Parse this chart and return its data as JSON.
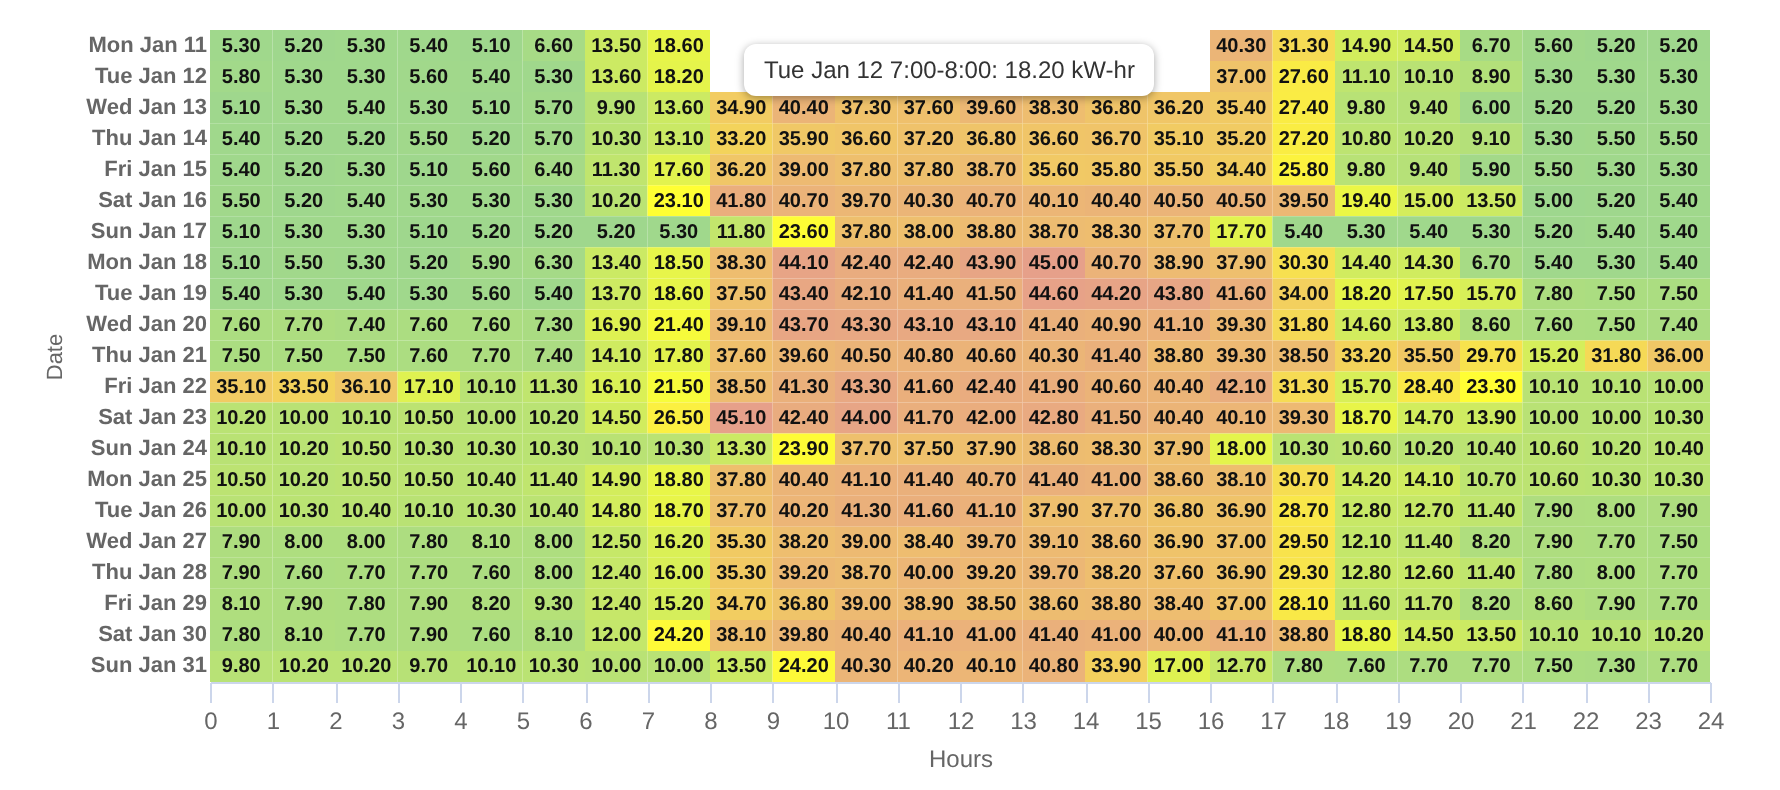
{
  "chart_data": {
    "type": "heatmap",
    "xlabel": "Hours",
    "ylabel": "Date",
    "x": [
      0,
      1,
      2,
      3,
      4,
      5,
      6,
      7,
      8,
      9,
      10,
      11,
      12,
      13,
      14,
      15,
      16,
      17,
      18,
      19,
      20,
      21,
      22,
      23
    ],
    "xlim": [
      0,
      24
    ],
    "xticks": [
      0,
      1,
      2,
      3,
      4,
      5,
      6,
      7,
      8,
      9,
      10,
      11,
      12,
      13,
      14,
      15,
      16,
      17,
      18,
      19,
      20,
      21,
      22,
      23,
      24
    ],
    "y_categories": [
      "Mon Jan 11",
      "Tue Jan 12",
      "Wed Jan 13",
      "Thu Jan 14",
      "Fri Jan 15",
      "Sat Jan 16",
      "Sun Jan 17",
      "Mon Jan 18",
      "Tue Jan 19",
      "Wed Jan 20",
      "Thu Jan 21",
      "Fri Jan 22",
      "Sat Jan 23",
      "Sun Jan 24",
      "Mon Jan 25",
      "Tue Jan 26",
      "Wed Jan 27",
      "Thu Jan 28",
      "Fri Jan 29",
      "Sat Jan 30",
      "Sun Jan 31"
    ],
    "cells": [
      [
        5.3,
        5.2,
        5.3,
        5.4,
        5.1,
        6.6,
        13.5,
        18.6,
        null,
        null,
        null,
        null,
        null,
        null,
        null,
        null,
        40.3,
        31.3,
        14.9,
        14.5,
        6.7,
        5.6,
        5.2,
        5.2
      ],
      [
        5.8,
        5.3,
        5.3,
        5.6,
        5.4,
        5.3,
        13.6,
        18.2,
        null,
        null,
        null,
        null,
        null,
        null,
        null,
        null,
        37.0,
        27.6,
        11.1,
        10.1,
        8.9,
        5.3,
        5.3,
        5.3
      ],
      [
        5.1,
        5.3,
        5.4,
        5.3,
        5.1,
        5.7,
        9.9,
        13.6,
        34.9,
        40.4,
        37.3,
        37.6,
        39.6,
        38.3,
        36.8,
        36.2,
        35.4,
        27.4,
        9.8,
        9.4,
        6.0,
        5.2,
        5.2,
        5.3
      ],
      [
        5.4,
        5.2,
        5.2,
        5.5,
        5.2,
        5.7,
        10.3,
        13.1,
        33.2,
        35.9,
        36.6,
        37.2,
        36.8,
        36.6,
        36.7,
        35.1,
        35.2,
        27.2,
        10.8,
        10.2,
        9.1,
        5.3,
        5.5,
        5.5
      ],
      [
        5.4,
        5.2,
        5.3,
        5.1,
        5.6,
        6.4,
        11.3,
        17.6,
        36.2,
        39.0,
        37.8,
        37.8,
        38.7,
        35.6,
        35.8,
        35.5,
        34.4,
        25.8,
        9.8,
        9.4,
        5.9,
        5.5,
        5.3,
        5.3
      ],
      [
        5.5,
        5.2,
        5.4,
        5.3,
        5.3,
        5.3,
        10.2,
        23.1,
        41.8,
        40.7,
        39.7,
        40.3,
        40.7,
        40.1,
        40.4,
        40.5,
        40.5,
        39.5,
        19.4,
        15.0,
        13.5,
        5.0,
        5.2,
        5.4
      ],
      [
        5.1,
        5.3,
        5.3,
        5.1,
        5.2,
        5.2,
        5.2,
        5.3,
        11.8,
        23.6,
        37.8,
        38.0,
        38.8,
        38.7,
        38.3,
        37.7,
        17.7,
        5.4,
        5.3,
        5.4,
        5.3,
        5.2,
        5.4,
        5.4
      ],
      [
        5.1,
        5.5,
        5.3,
        5.2,
        5.9,
        6.3,
        13.4,
        18.5,
        38.3,
        44.1,
        42.4,
        42.4,
        43.9,
        45.0,
        40.7,
        38.9,
        37.9,
        30.3,
        14.4,
        14.3,
        6.7,
        5.4,
        5.3,
        5.4
      ],
      [
        5.4,
        5.3,
        5.4,
        5.3,
        5.6,
        5.4,
        13.7,
        18.6,
        37.5,
        43.4,
        42.1,
        41.4,
        41.5,
        44.6,
        44.2,
        43.8,
        41.6,
        34.0,
        18.2,
        17.5,
        15.7,
        7.8,
        7.5,
        7.5
      ],
      [
        7.6,
        7.7,
        7.4,
        7.6,
        7.6,
        7.3,
        16.9,
        21.4,
        39.1,
        43.7,
        43.3,
        43.1,
        43.1,
        41.4,
        40.9,
        41.1,
        39.3,
        31.8,
        14.6,
        13.8,
        8.6,
        7.6,
        7.5,
        7.4
      ],
      [
        7.5,
        7.5,
        7.5,
        7.6,
        7.7,
        7.4,
        14.1,
        17.8,
        37.6,
        39.6,
        40.5,
        40.8,
        40.6,
        40.3,
        41.4,
        38.8,
        39.3,
        38.5,
        33.2,
        35.5,
        29.7,
        15.2,
        31.8,
        36.0
      ],
      [
        35.1,
        33.5,
        36.1,
        17.1,
        10.1,
        11.3,
        16.1,
        21.5,
        38.5,
        41.3,
        43.3,
        41.6,
        42.4,
        41.9,
        40.6,
        40.4,
        42.1,
        31.3,
        15.7,
        28.4,
        23.3,
        10.1,
        10.1,
        10.0
      ],
      [
        10.2,
        10.0,
        10.1,
        10.5,
        10.0,
        10.2,
        14.5,
        26.5,
        45.1,
        42.4,
        44.0,
        41.7,
        42.0,
        42.8,
        41.5,
        40.4,
        40.1,
        39.3,
        18.7,
        14.7,
        13.9,
        10.0,
        10.0,
        10.3
      ],
      [
        10.1,
        10.2,
        10.5,
        10.3,
        10.3,
        10.3,
        10.1,
        10.3,
        13.3,
        23.9,
        37.7,
        37.5,
        37.9,
        38.6,
        38.3,
        37.9,
        18.0,
        10.3,
        10.6,
        10.2,
        10.4,
        10.6,
        10.2,
        10.4
      ],
      [
        10.5,
        10.2,
        10.5,
        10.5,
        10.4,
        11.4,
        14.9,
        18.8,
        37.8,
        40.4,
        41.1,
        41.4,
        40.7,
        41.4,
        41.0,
        38.6,
        38.1,
        30.7,
        14.2,
        14.1,
        10.7,
        10.6,
        10.3,
        10.3
      ],
      [
        10.0,
        10.3,
        10.4,
        10.1,
        10.3,
        10.4,
        14.8,
        18.7,
        37.7,
        40.2,
        41.3,
        41.6,
        41.1,
        37.9,
        37.7,
        36.8,
        36.9,
        28.7,
        12.8,
        12.7,
        11.4,
        7.9,
        8.0,
        7.9
      ],
      [
        7.9,
        8.0,
        8.0,
        7.8,
        8.1,
        8.0,
        12.5,
        16.2,
        35.3,
        38.2,
        39.0,
        38.4,
        39.7,
        39.1,
        38.6,
        36.9,
        37.0,
        29.5,
        12.1,
        11.4,
        8.2,
        7.9,
        7.7,
        7.5
      ],
      [
        7.9,
        7.6,
        7.7,
        7.7,
        7.6,
        8.0,
        12.4,
        16.0,
        35.3,
        39.2,
        38.7,
        40.0,
        39.2,
        39.7,
        38.2,
        37.6,
        36.9,
        29.3,
        12.8,
        12.6,
        11.4,
        7.8,
        8.0,
        7.7
      ],
      [
        8.1,
        7.9,
        7.8,
        7.9,
        8.2,
        9.3,
        12.4,
        15.2,
        34.7,
        36.8,
        39.0,
        38.9,
        38.5,
        38.6,
        38.8,
        38.4,
        37.0,
        28.1,
        11.6,
        11.7,
        8.2,
        8.6,
        7.9,
        7.7
      ],
      [
        7.8,
        8.1,
        7.7,
        7.9,
        7.6,
        8.1,
        12.0,
        24.2,
        38.1,
        39.8,
        40.4,
        41.1,
        41.0,
        41.4,
        41.0,
        40.0,
        41.1,
        38.8,
        18.8,
        14.5,
        13.5,
        10.1,
        10.1,
        10.2
      ],
      [
        9.8,
        10.2,
        10.2,
        9.7,
        10.1,
        10.3,
        10.0,
        10.0,
        13.5,
        24.2,
        40.3,
        40.2,
        40.1,
        40.8,
        33.9,
        17.0,
        12.7,
        7.8,
        7.6,
        7.7,
        7.7,
        7.5,
        7.3,
        7.7
      ]
    ],
    "cell_labels": [
      [
        "5.30",
        "5.20",
        "5.30",
        "5.40",
        "5.10",
        "6.60",
        "13.50",
        "18.60",
        null,
        null,
        null,
        null,
        null,
        null,
        null,
        null,
        "40.30",
        "31.30",
        "14.90",
        "14.50",
        "6.70",
        "5.60",
        "5.20",
        "5.20"
      ],
      [
        "5.80",
        "5.30",
        "5.30",
        "5.60",
        "5.40",
        "5.30",
        "13.60",
        "18.20",
        null,
        null,
        null,
        null,
        null,
        null,
        null,
        null,
        "37.00",
        "27.60",
        "11.10",
        "10.10",
        "8.90",
        "5.30",
        "5.30",
        "5.30"
      ],
      [
        "5.10",
        "5.30",
        "5.40",
        "5.30",
        "5.10",
        "5.70",
        "9.90",
        "13.60",
        "34.90",
        "40.40",
        "37.30",
        "37.60",
        "39.60",
        "38.30",
        "36.80",
        "36.20",
        "35.40",
        "27.40",
        "9.80",
        "9.40",
        "6.00",
        "5.20",
        "5.20",
        "5.30"
      ],
      [
        "5.40",
        "5.20",
        "5.20",
        "5.50",
        "5.20",
        "5.70",
        "10.30",
        "13.10",
        "33.20",
        "35.90",
        "36.60",
        "37.20",
        "36.80",
        "36.60",
        "36.70",
        "35.10",
        "35.20",
        "27.20",
        "10.80",
        "10.20",
        "9.10",
        "5.30",
        "5.50",
        "5.50"
      ],
      [
        "5.40",
        "5.20",
        "5.30",
        "5.10",
        "5.60",
        "6.40",
        "11.30",
        "17.60",
        "36.20",
        "39.00",
        "37.80",
        "37.80",
        "38.70",
        "35.60",
        "35.80",
        "35.50",
        "34.40",
        "25.80",
        "9.80",
        "9.40",
        "5.90",
        "5.50",
        "5.30",
        "5.30"
      ],
      [
        "5.50",
        "5.20",
        "5.40",
        "5.30",
        "5.30",
        "5.30",
        "10.20",
        "23.10",
        "41.80",
        "40.70",
        "39.70",
        "40.30",
        "40.70",
        "40.10",
        "40.40",
        "40.50",
        "40.50",
        "39.50",
        "19.40",
        "15.00",
        "13.50",
        "5.00",
        "5.20",
        "5.40"
      ],
      [
        "5.10",
        "5.30",
        "5.30",
        "5.10",
        "5.20",
        "5.20",
        "5.20",
        "5.30",
        "11.80",
        "23.60",
        "37.80",
        "38.00",
        "38.80",
        "38.70",
        "38.30",
        "37.70",
        "17.70",
        "5.40",
        "5.30",
        "5.40",
        "5.30",
        "5.20",
        "5.40",
        "5.40"
      ],
      [
        "5.10",
        "5.50",
        "5.30",
        "5.20",
        "5.90",
        "6.30",
        "13.40",
        "18.50",
        "38.30",
        "44.10",
        "42.40",
        "42.40",
        "43.90",
        "45.00",
        "40.70",
        "38.90",
        "37.90",
        "30.30",
        "14.40",
        "14.30",
        "6.70",
        "5.40",
        "5.30",
        "5.40"
      ],
      [
        "5.40",
        "5.30",
        "5.40",
        "5.30",
        "5.60",
        "5.40",
        "13.70",
        "18.60",
        "37.50",
        "43.40",
        "42.10",
        "41.40",
        "41.50",
        "44.60",
        "44.20",
        "43.80",
        "41.60",
        "34.00",
        "18.20",
        "17.50",
        "15.70",
        "7.80",
        "7.50",
        "7.50"
      ],
      [
        "7.60",
        "7.70",
        "7.40",
        "7.60",
        "7.60",
        "7.30",
        "16.90",
        "21.40",
        "39.10",
        "43.70",
        "43.30",
        "43.10",
        "43.10",
        "41.40",
        "40.90",
        "41.10",
        "39.30",
        "31.80",
        "14.60",
        "13.80",
        "8.60",
        "7.60",
        "7.50",
        "7.40"
      ],
      [
        "7.50",
        "7.50",
        "7.50",
        "7.60",
        "7.70",
        "7.40",
        "14.10",
        "17.80",
        "37.60",
        "39.60",
        "40.50",
        "40.80",
        "40.60",
        "40.30",
        "41.40",
        "38.80",
        "39.30",
        "38.50",
        "33.20",
        "35.50",
        "29.70",
        "15.20",
        "31.80",
        "36.00"
      ],
      [
        "35.10",
        "33.50",
        "36.10",
        "17.10",
        "10.10",
        "11.30",
        "16.10",
        "21.50",
        "38.50",
        "41.30",
        "43.30",
        "41.60",
        "42.40",
        "41.90",
        "40.60",
        "40.40",
        "42.10",
        "31.30",
        "15.70",
        "28.40",
        "23.30",
        "10.10",
        "10.10",
        "10.00"
      ],
      [
        "10.20",
        "10.00",
        "10.10",
        "10.50",
        "10.00",
        "10.20",
        "14.50",
        "26.50",
        "45.10",
        "42.40",
        "44.00",
        "41.70",
        "42.00",
        "42.80",
        "41.50",
        "40.40",
        "40.10",
        "39.30",
        "18.70",
        "14.70",
        "13.90",
        "10.00",
        "10.00",
        "10.30"
      ],
      [
        "10.10",
        "10.20",
        "10.50",
        "10.30",
        "10.30",
        "10.30",
        "10.10",
        "10.30",
        "13.30",
        "23.90",
        "37.70",
        "37.50",
        "37.90",
        "38.60",
        "38.30",
        "37.90",
        "18.00",
        "10.30",
        "10.60",
        "10.20",
        "10.40",
        "10.60",
        "10.20",
        "10.40"
      ],
      [
        "10.50",
        "10.20",
        "10.50",
        "10.50",
        "10.40",
        "11.40",
        "14.90",
        "18.80",
        "37.80",
        "40.40",
        "41.10",
        "41.40",
        "40.70",
        "41.40",
        "41.00",
        "38.60",
        "38.10",
        "30.70",
        "14.20",
        "14.10",
        "10.70",
        "10.60",
        "10.30",
        "10.30"
      ],
      [
        "10.00",
        "10.30",
        "10.40",
        "10.10",
        "10.30",
        "10.40",
        "14.80",
        "18.70",
        "37.70",
        "40.20",
        "41.30",
        "41.60",
        "41.10",
        "37.90",
        "37.70",
        "36.80",
        "36.90",
        "28.70",
        "12.80",
        "12.70",
        "11.40",
        "7.90",
        "8.00",
        "7.90"
      ],
      [
        "7.90",
        "8.00",
        "8.00",
        "7.80",
        "8.10",
        "8.00",
        "12.50",
        "16.20",
        "35.30",
        "38.20",
        "39.00",
        "38.40",
        "39.70",
        "39.10",
        "38.60",
        "36.90",
        "37.00",
        "29.50",
        "12.10",
        "11.40",
        "8.20",
        "7.90",
        "7.70",
        "7.50"
      ],
      [
        "7.90",
        "7.60",
        "7.70",
        "7.70",
        "7.60",
        "8.00",
        "12.40",
        "16.00",
        "35.30",
        "39.20",
        "38.70",
        "40.00",
        "39.20",
        "39.70",
        "38.20",
        "37.60",
        "36.90",
        "29.30",
        "12.80",
        "12.60",
        "11.40",
        "7.80",
        "8.00",
        "7.70"
      ],
      [
        "8.10",
        "7.90",
        "7.80",
        "7.90",
        "8.20",
        "9.30",
        "12.40",
        "15.20",
        "34.70",
        "36.80",
        "39.00",
        "38.90",
        "38.50",
        "38.60",
        "38.80",
        "38.40",
        "37.00",
        "28.10",
        "11.60",
        "11.70",
        "8.20",
        "8.60",
        "7.90",
        "7.70"
      ],
      [
        "7.80",
        "8.10",
        "7.70",
        "7.90",
        "7.60",
        "8.10",
        "12.00",
        "24.20",
        "38.10",
        "39.80",
        "40.40",
        "41.10",
        "41.00",
        "41.40",
        "41.00",
        "40.00",
        "41.10",
        "38.80",
        "18.80",
        "14.50",
        "13.50",
        "10.10",
        "10.10",
        "10.20"
      ],
      [
        "9.80",
        "10.20",
        "10.20",
        "9.70",
        "10.10",
        "10.30",
        "10.00",
        "10.00",
        "13.50",
        "24.20",
        "40.30",
        "40.20",
        "40.10",
        "40.80",
        "33.90",
        "17.00",
        "12.70",
        "7.80",
        "7.60",
        "7.70",
        "7.70",
        "7.50",
        "7.30",
        "7.70"
      ]
    ],
    "annotations": [
      "Tue Jan 12 7:00-8:00: 18.20 kW-hr"
    ]
  }
}
